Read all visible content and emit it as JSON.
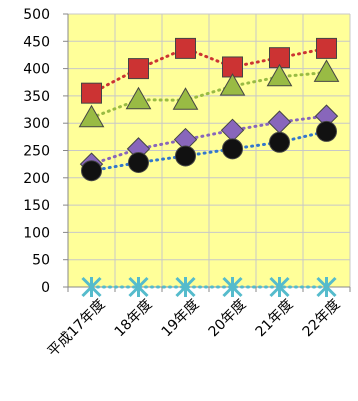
{
  "chart_data": {
    "type": "line",
    "categories": [
      "平成17年度",
      "18年度",
      "19年度",
      "20年度",
      "21年度",
      "22年度"
    ],
    "ylim": [
      0,
      500
    ],
    "yticks": [
      0,
      50,
      100,
      150,
      200,
      250,
      300,
      350,
      400,
      450,
      500
    ],
    "grid": true,
    "plot_background": "#ffff99",
    "grid_color": "#c8c8c8",
    "series": [
      {
        "values": [
          355,
          400,
          437,
          403,
          420,
          437
        ],
        "marker": "square",
        "marker_color": "#cc3333",
        "line_color": "#cc3333",
        "line_style": "dotted"
      },
      {
        "values": [
          310,
          343,
          342,
          368,
          385,
          393
        ],
        "marker": "triangle",
        "marker_color": "#99bb44",
        "line_color": "#99bb44",
        "line_style": "dotted"
      },
      {
        "values": [
          225,
          253,
          270,
          287,
          302,
          313
        ],
        "marker": "diamond",
        "marker_color": "#8866bb",
        "line_color": "#8866bb",
        "line_style": "dotted"
      },
      {
        "values": [
          213,
          228,
          240,
          253,
          265,
          285
        ],
        "marker": "circle",
        "marker_color": "#111111",
        "line_color": "#3377cc",
        "line_style": "dotted"
      },
      {
        "values": [
          0,
          0,
          0,
          0,
          0,
          0
        ],
        "marker": "star",
        "marker_color": "#55bbcc",
        "line_color": "#55bbcc",
        "line_style": "dotted"
      }
    ]
  }
}
